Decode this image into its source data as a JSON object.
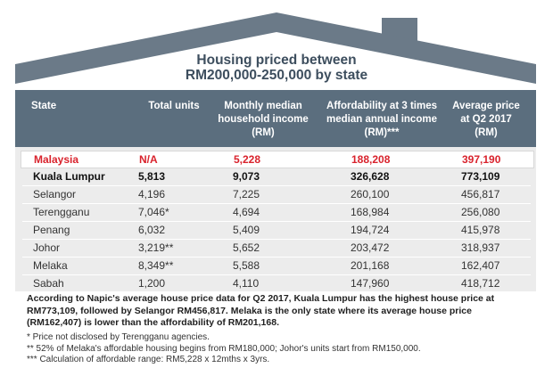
{
  "chart_data": {
    "type": "table",
    "title_line1": "Housing priced between",
    "title_line2": "RM200,000-250,000 by state",
    "columns": [
      "State",
      "Total units",
      "Monthly median household income (RM)",
      "Affordability at 3 times median annual income (RM)***",
      "Average price at Q2 2017 (RM)"
    ],
    "column_lines": [
      [
        "State"
      ],
      [
        "Total units"
      ],
      [
        "Monthly median",
        "household income",
        "(RM)"
      ],
      [
        "Affordability at 3 times",
        "median annual income",
        "(RM)***"
      ],
      [
        "Average price",
        "at Q2 2017",
        "(RM)"
      ]
    ],
    "rows": [
      {
        "state": "Malaysia",
        "total_units": "N/A",
        "monthly_income": "5,228",
        "affordability": "188,208",
        "avg_price": "397,190"
      },
      {
        "state": "Kuala Lumpur",
        "total_units": "5,813",
        "monthly_income": "9,073",
        "affordability": "326,628",
        "avg_price": "773,109"
      },
      {
        "state": "Selangor",
        "total_units": "4,196",
        "monthly_income": "7,225",
        "affordability": "260,100",
        "avg_price": "456,817"
      },
      {
        "state": "Terengganu",
        "total_units": "7,046*",
        "monthly_income": "4,694",
        "affordability": "168,984",
        "avg_price": "256,080"
      },
      {
        "state": "Penang",
        "total_units": "6,032",
        "monthly_income": "5,409",
        "affordability": "194,724",
        "avg_price": "415,978"
      },
      {
        "state": "Johor",
        "total_units": "3,219**",
        "monthly_income": "5,652",
        "affordability": "203,472",
        "avg_price": "318,937"
      },
      {
        "state": "Melaka",
        "total_units": "8,349**",
        "monthly_income": "5,588",
        "affordability": "201,168",
        "avg_price": "162,407"
      },
      {
        "state": "Sabah",
        "total_units": "1,200",
        "monthly_income": "4,110",
        "affordability": "147,960",
        "avg_price": "418,712"
      }
    ]
  },
  "summary_lines": [
    "According to Napic's average house price data for Q2 2017, Kuala Lumpur has the highest house price at",
    "RM773,109, followed by Selangor RM456,817. Melaka is the only state where its average house price",
    "(RM162,407) is lower than the affordability of RM201,168."
  ],
  "footnotes": [
    "* Price not disclosed by Terengganu agencies.",
    "** 52% of Melaka's affordable housing begins from RM180,000; Johor's units start from RM150,000.",
    "*** Calculation of affordable range: RM5,228 x 12mths x 3yrs."
  ],
  "colors": {
    "roof": "#6b7a88",
    "header": "#5b6e7e",
    "panel": "#ececec",
    "title": "#3d4e5e",
    "highlight": "#d9232d"
  }
}
